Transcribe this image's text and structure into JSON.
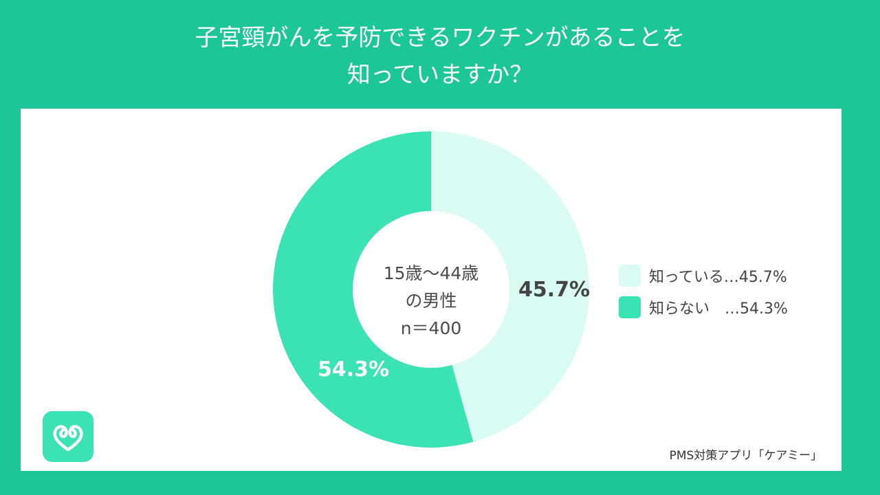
{
  "title": {
    "line1": "子宮頸がんを予防できるワクチンがあることを",
    "line2": "知っていますか？"
  },
  "center": {
    "line1": "15歳〜44歳",
    "line2": "の男性",
    "line3": "n＝400"
  },
  "chart_data": {
    "type": "pie",
    "donut": true,
    "categories": [
      "知っている",
      "知らない"
    ],
    "values": [
      45.7,
      54.3
    ],
    "data_labels": [
      "45.7%",
      "54.3%"
    ],
    "colors": [
      "#d9fbf4",
      "#3be2b4"
    ],
    "legend_placement": "right",
    "legend": [
      {
        "label": "知っている…45.7%",
        "color": "#d9fbf4"
      },
      {
        "label": "知らない　…54.3%",
        "color": "#3be2b4"
      }
    ]
  },
  "source": "PMS対策アプリ「ケアミー」",
  "logo": {
    "icon": "heart-logo-icon",
    "color": "#3be2b4"
  }
}
